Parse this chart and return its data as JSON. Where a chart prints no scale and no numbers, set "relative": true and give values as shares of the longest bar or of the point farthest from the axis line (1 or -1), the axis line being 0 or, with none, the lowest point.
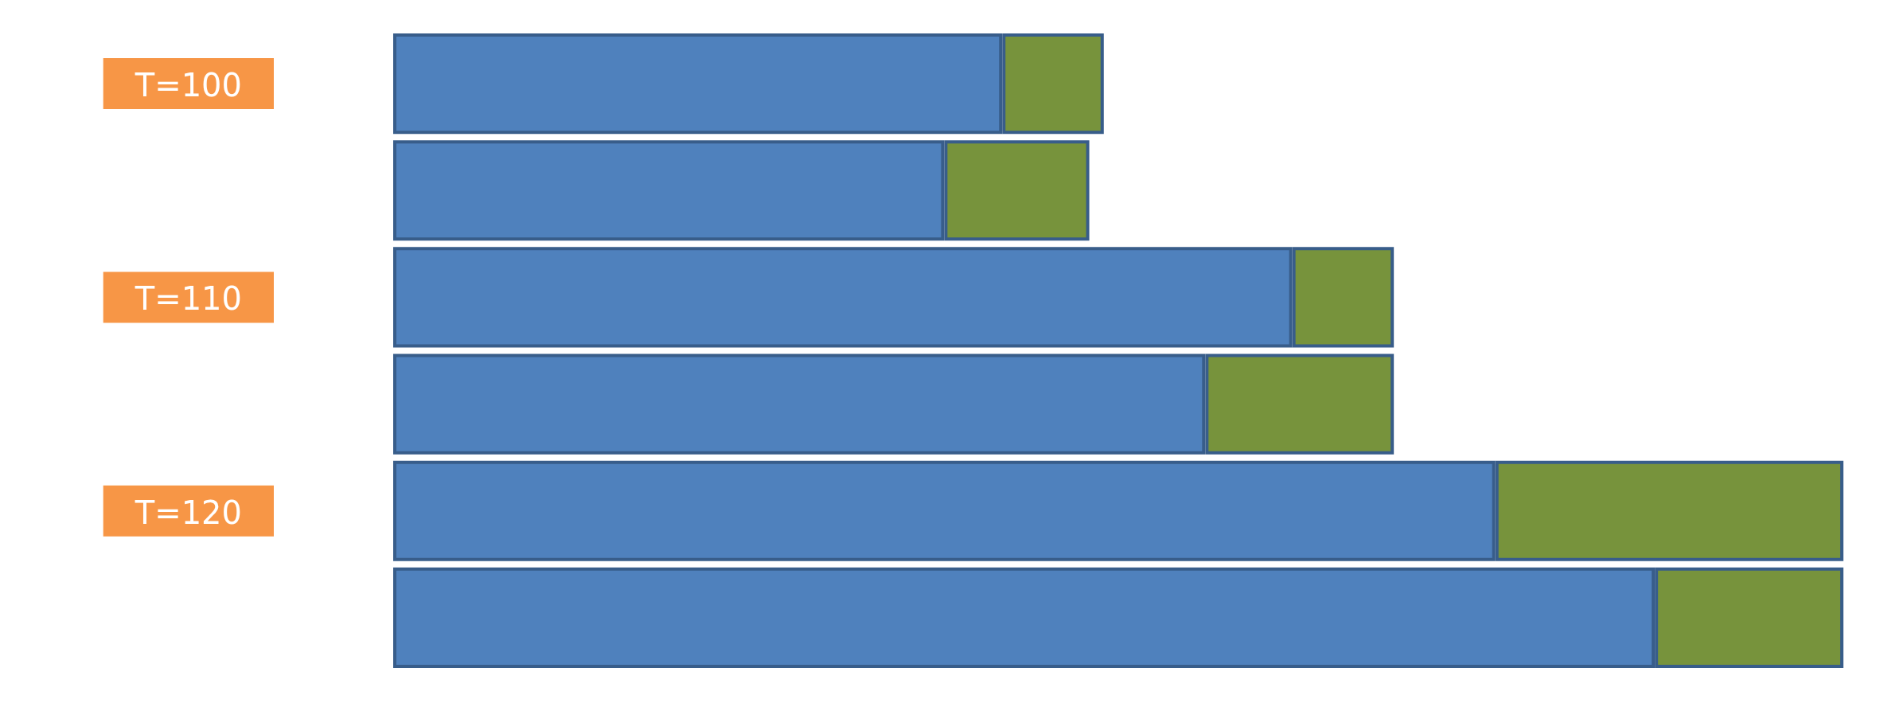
{
  "chart_data": {
    "type": "bar",
    "orientation": "horizontal",
    "stacked": true,
    "relative": true,
    "categories": [
      "T=100",
      null,
      "T=110",
      null,
      "T=120",
      null
    ],
    "series": [
      {
        "color": "#4f81bd",
        "values": [
          0.42,
          0.38,
          0.62,
          0.56,
          0.76,
          0.87
        ]
      },
      {
        "color": "#77933c",
        "values": [
          0.07,
          0.1,
          0.07,
          0.13,
          0.24,
          0.13
        ]
      }
    ]
  }
}
